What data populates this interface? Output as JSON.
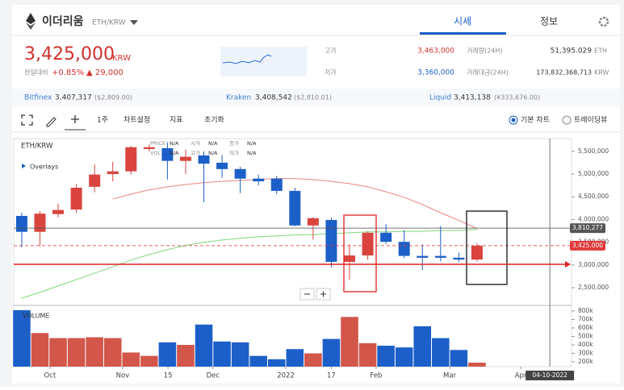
{
  "header": {
    "title": "이더리움",
    "pair": "ETH/KRW",
    "tabs": [
      "시세",
      "정보"
    ]
  },
  "ticker": {
    "price": "3,425,000",
    "currency": "KRW",
    "change_label": "전일대비",
    "change_pct": "+0.85%",
    "change_amt": "▲ 29,000",
    "stats": [
      {
        "label": "고가",
        "value": "3,463,000"
      },
      {
        "label": "저가",
        "value": "3,360,000"
      },
      {
        "label": "거래량(24H)",
        "value": "51,395.029",
        "unit": "ETH"
      },
      {
        "label": "거래대금(24H)",
        "value": "173,832,368,713",
        "unit": "KRW"
      }
    ]
  },
  "exchanges": [
    {
      "name": "Bitfinex",
      "price": "3,407,317",
      "ref": "($2,809.00)"
    },
    {
      "name": "Kraken",
      "price": "3,408,542",
      "ref": "($2,810.01)"
    },
    {
      "name": "Liquid",
      "price": "3,413,138",
      "ref": "(¥333,676.00)"
    }
  ],
  "toolbar": {
    "period": "1주",
    "items": [
      "차트설정",
      "지표",
      "초기화"
    ],
    "chart_types": [
      "기본 차트",
      "트레이딩뷰"
    ]
  },
  "chart_data": {
    "type": "candlestick",
    "symbol": "ETH/KRW",
    "overlays": "Overlays",
    "legend_rows": [
      [
        "PRICE",
        "N/A",
        "시가",
        "N/A",
        "종가",
        "N/A"
      ],
      [
        "VOL",
        "N/A",
        "고가",
        "N/A",
        "저가",
        "N/A"
      ]
    ],
    "volume_label": "VOLUME",
    "categories": [
      null,
      null,
      null,
      null,
      null,
      null,
      null,
      null,
      null,
      null,
      null,
      null,
      null,
      null,
      null,
      null,
      null,
      null,
      null,
      null,
      null,
      null,
      null,
      null,
      null,
      null
    ],
    "open": [
      4080000,
      3730000,
      4120000,
      4220000,
      4720000,
      5000000,
      5060000,
      5550000,
      5570000,
      5290000,
      5410000,
      5250000,
      5110000,
      4900000,
      4900000,
      4630000,
      3870000,
      3990000,
      3070000,
      3210000,
      3710000,
      3510000,
      3200000,
      3200000,
      3160000,
      3120000
    ],
    "high": [
      4150000,
      4180000,
      4350000,
      4780000,
      5210000,
      5270000,
      5620000,
      5650000,
      5700000,
      5540000,
      5500000,
      5420000,
      5160000,
      4990000,
      4960000,
      4700000,
      4050000,
      4040000,
      3450000,
      3740000,
      3900000,
      3770000,
      3450000,
      3860000,
      3270000,
      3480000
    ],
    "low": [
      3390000,
      3420000,
      4050000,
      4150000,
      4600000,
      4840000,
      4990000,
      5500000,
      4880000,
      5000000,
      4380000,
      4920000,
      4580000,
      4750000,
      4560000,
      3850000,
      3560000,
      2950000,
      2680000,
      3120000,
      3460000,
      3150000,
      2890000,
      3080000,
      3070000,
      3080000
    ],
    "close": [
      3730000,
      4130000,
      4210000,
      4700000,
      4990000,
      5060000,
      5590000,
      5590000,
      5290000,
      5380000,
      5230000,
      5110000,
      4900000,
      4840000,
      4630000,
      3870000,
      4030000,
      3070000,
      3210000,
      3710000,
      3510000,
      3200000,
      3160000,
      3160000,
      3120000,
      3425000
    ],
    "up_color": "#d9443f",
    "down_color": "#1c5fc8",
    "ylim": [
      2130000,
      5780000
    ],
    "yticks": [
      {
        "value": 2500000,
        "label": "2,500,000"
      },
      {
        "value": 3000000,
        "label": "3,000,000"
      },
      {
        "value": 3500000,
        "label": "3,500,000"
      },
      {
        "value": 4000000,
        "label": "4,000,000"
      },
      {
        "value": 4500000,
        "label": "4,500,000"
      },
      {
        "value": 5000000,
        "label": "5,000,000"
      },
      {
        "value": 5500000,
        "label": "5,500,000"
      }
    ],
    "xlim": [
      -0.44,
      30.19
    ],
    "xticks": [
      {
        "value": 1.55,
        "label": "Oct"
      },
      {
        "value": 5.54,
        "label": "Nov"
      },
      {
        "value": 8.03,
        "label": "15"
      },
      {
        "value": 10.5,
        "label": "Dec"
      },
      {
        "value": 14.5,
        "label": "2022"
      },
      {
        "value": 17.0,
        "label": "17"
      },
      {
        "value": 19.46,
        "label": "Feb"
      },
      {
        "value": 23.5,
        "label": "Mar"
      },
      {
        "value": 27.4,
        "label": "Apr"
      }
    ],
    "crosshair": {
      "value": 29.0,
      "label": "04-10-2022"
    },
    "ma": [
      {
        "color": "#e8877f",
        "values": [
          null,
          null,
          null,
          null,
          null,
          4450000,
          4560000,
          4650000,
          4720000,
          4770000,
          4810000,
          4840000,
          4860000,
          4880000,
          4900000,
          4900000,
          4880000,
          4840000,
          4790000,
          4720000,
          4610000,
          4490000,
          4330000,
          4150000,
          3980000,
          3800000
        ]
      },
      {
        "color": "#7fd67a",
        "values": [
          2270000,
          2400000,
          2540000,
          2680000,
          2820000,
          2960000,
          3110000,
          3230000,
          3340000,
          3430000,
          3500000,
          3550000,
          3590000,
          3620000,
          3640000,
          3660000,
          3670000,
          3690000,
          3710000,
          3730000,
          3730000,
          3740000,
          3740000,
          3760000,
          3760000,
          3780000
        ]
      }
    ],
    "price_lines": [
      {
        "value": 3810277,
        "label": "3,810,277",
        "color": "#555555",
        "dashed": false
      },
      {
        "value": 3425000,
        "label": "3,425,000",
        "color": "#e03a3a",
        "dashed": true
      }
    ],
    "volume": {
      "values": [
        810000,
        540000,
        480000,
        480000,
        490000,
        480000,
        310000,
        270000,
        430000,
        400000,
        640000,
        440000,
        430000,
        270000,
        230000,
        350000,
        300000,
        470000,
        730000,
        420000,
        390000,
        370000,
        620000,
        480000,
        340000,
        190000
      ],
      "ylim": [
        143000,
        857000
      ],
      "yticks": [
        {
          "value": 200000,
          "label": "200k"
        },
        {
          "value": 300000,
          "label": "300k"
        },
        {
          "value": 400000,
          "label": "400k"
        },
        {
          "value": 500000,
          "label": "500k"
        },
        {
          "value": 600000,
          "label": "600k"
        },
        {
          "value": 700000,
          "label": "700k"
        },
        {
          "value": 800000,
          "label": "800k"
        }
      ]
    }
  }
}
